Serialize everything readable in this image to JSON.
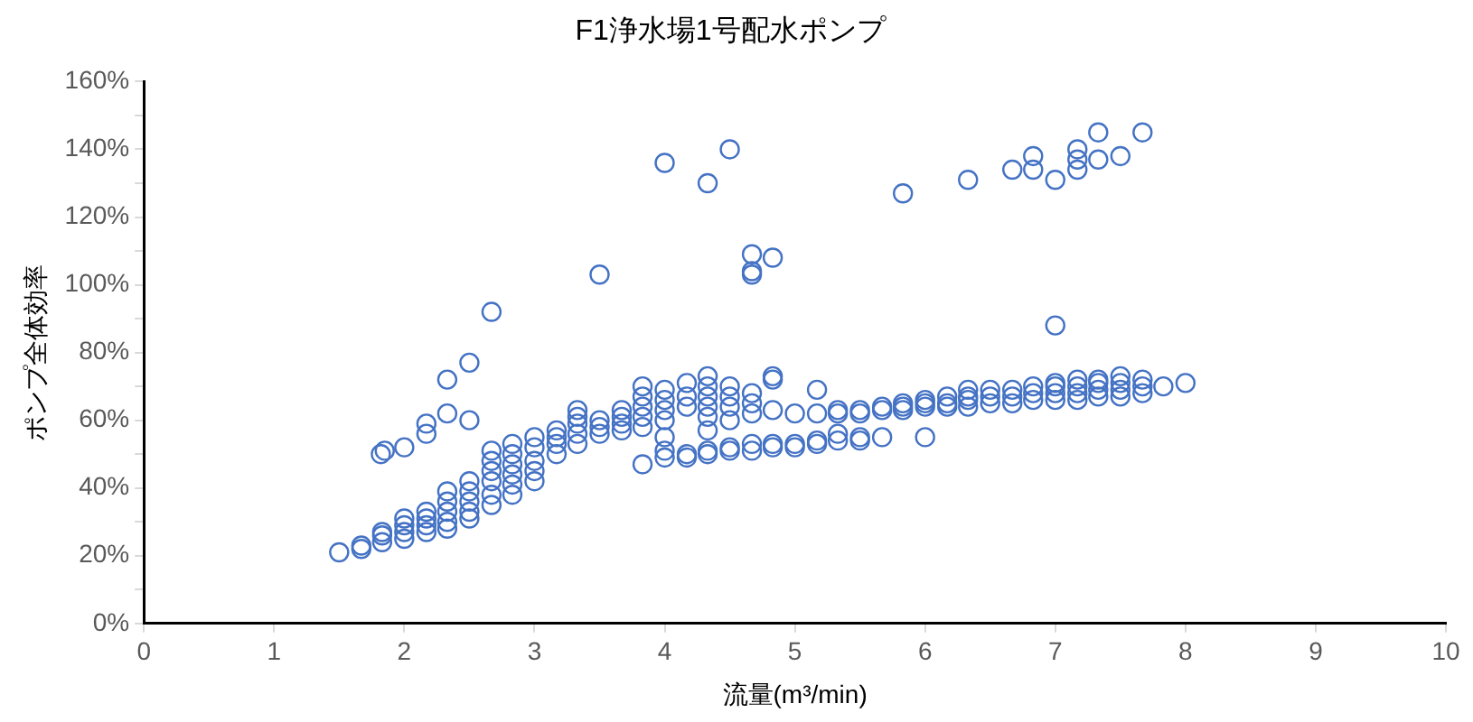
{
  "chart_data": {
    "type": "scatter",
    "title": "F1浄水場1号配水ポンプ",
    "xlabel": "流量(m³/min)",
    "ylabel": "ポンプ全体効率",
    "x": [
      1.5,
      1.67,
      1.67,
      1.83,
      1.83,
      1.83,
      2.0,
      2.0,
      2.0,
      2.0,
      2.17,
      2.17,
      2.17,
      2.17,
      2.33,
      2.33,
      2.33,
      2.33,
      2.33,
      2.5,
      2.5,
      2.5,
      2.5,
      2.5,
      2.67,
      2.67,
      2.67,
      2.67,
      2.67,
      2.67,
      2.83,
      2.83,
      2.83,
      2.83,
      2.83,
      2.83,
      3.0,
      3.0,
      3.0,
      3.0,
      3.0,
      3.17,
      3.17,
      3.17,
      3.17,
      3.33,
      3.33,
      3.33,
      3.33,
      3.33,
      3.5,
      3.5,
      3.5,
      3.67,
      3.67,
      3.67,
      3.67,
      3.83,
      3.83,
      3.83,
      3.83,
      3.83,
      4.0,
      4.0,
      4.0,
      4.0,
      4.0,
      4.0,
      4.0,
      4.17,
      4.17,
      4.17,
      4.17,
      4.17,
      4.33,
      4.33,
      4.33,
      4.33,
      4.33,
      4.33,
      4.33,
      4.33,
      4.5,
      4.5,
      4.5,
      4.5,
      4.5,
      4.5,
      4.67,
      4.67,
      4.67,
      4.67,
      4.67,
      4.83,
      4.83,
      4.83,
      4.83,
      4.83,
      5.0,
      5.0,
      5.0,
      5.17,
      5.17,
      5.17,
      5.33,
      5.33,
      5.33,
      5.33,
      5.5,
      5.5,
      5.5,
      5.5,
      5.67,
      5.67,
      5.67,
      5.83,
      5.83,
      5.83,
      6.0,
      6.0,
      6.0,
      6.17,
      6.17,
      6.17,
      6.33,
      6.33,
      6.33,
      6.33,
      6.5,
      6.5,
      6.5,
      6.67,
      6.67,
      6.67,
      6.83,
      6.83,
      6.83,
      7.0,
      7.0,
      7.0,
      7.0,
      7.17,
      7.17,
      7.17,
      7.17,
      7.33,
      7.33,
      7.33,
      7.33,
      7.5,
      7.5,
      7.5,
      7.5,
      7.67,
      7.67,
      7.67,
      7.83,
      8.0,
      1.82,
      1.85,
      2.0,
      2.17,
      2.17,
      2.33,
      2.33,
      2.5,
      2.5,
      2.67,
      3.5,
      4.0,
      4.33,
      4.5,
      4.67,
      4.67,
      4.67,
      4.83,
      5.83,
      6.33,
      6.67,
      6.83,
      6.83,
      7.0,
      7.17,
      7.17,
      7.17,
      7.33,
      7.33,
      7.5,
      7.67,
      7.0,
      6.0,
      5.17,
      3.83
    ],
    "values": [
      21,
      22,
      23,
      24,
      26,
      27,
      25,
      27,
      29,
      31,
      27,
      29,
      31,
      33,
      28,
      30,
      33,
      36,
      39,
      31,
      33,
      36,
      39,
      42,
      35,
      38,
      42,
      45,
      48,
      51,
      38,
      41,
      44,
      47,
      50,
      53,
      42,
      45,
      48,
      52,
      55,
      50,
      53,
      55,
      57,
      53,
      56,
      59,
      61,
      63,
      56,
      58,
      60,
      57,
      59,
      61,
      63,
      58,
      61,
      64,
      67,
      70,
      49,
      51,
      55,
      60,
      63,
      66,
      69,
      49,
      50,
      64,
      67,
      71,
      50,
      51,
      57,
      61,
      64,
      67,
      70,
      73,
      51,
      52,
      60,
      64,
      67,
      70,
      51,
      53,
      62,
      65,
      68,
      52,
      53,
      63,
      72,
      73,
      52,
      53,
      62,
      53,
      54,
      62,
      54,
      56,
      62,
      63,
      54,
      55,
      62,
      63,
      55,
      63,
      64,
      63,
      64,
      65,
      64,
      65,
      66,
      64,
      65,
      67,
      64,
      66,
      67,
      69,
      65,
      67,
      69,
      65,
      67,
      69,
      66,
      68,
      70,
      66,
      68,
      70,
      71,
      66,
      68,
      70,
      72,
      67,
      69,
      71,
      72,
      67,
      69,
      71,
      73,
      68,
      70,
      72,
      70,
      71,
      50,
      51,
      52,
      56,
      59,
      62,
      72,
      60,
      77,
      92,
      103,
      136,
      130,
      140,
      109,
      104,
      103,
      108,
      127,
      131,
      134,
      138,
      134,
      131,
      140,
      137,
      134,
      145,
      137,
      138,
      145,
      88,
      55,
      69,
      47
    ],
    "color": "#4472c4",
    "marker": "circle",
    "grid": false,
    "legend": false,
    "xlim": [
      0,
      10
    ],
    "xticks": [
      0,
      1,
      2,
      3,
      4,
      5,
      6,
      7,
      8,
      9,
      10
    ],
    "ylim": [
      0,
      160
    ],
    "yticks": [
      {
        "value": 0,
        "label": "0%"
      },
      {
        "value": 10,
        "label": null
      },
      {
        "value": 20,
        "label": "20%"
      },
      {
        "value": 30,
        "label": null
      },
      {
        "value": 40,
        "label": "40%"
      },
      {
        "value": 50,
        "label": null
      },
      {
        "value": 60,
        "label": "60%"
      },
      {
        "value": 70,
        "label": null
      },
      {
        "value": 80,
        "label": "80%"
      },
      {
        "value": 90,
        "label": null
      },
      {
        "value": 100,
        "label": "100%"
      },
      {
        "value": 110,
        "label": null
      },
      {
        "value": 120,
        "label": "120%"
      },
      {
        "value": 130,
        "label": null
      },
      {
        "value": 140,
        "label": "140%"
      },
      {
        "value": 150,
        "label": null
      },
      {
        "value": 160,
        "label": "160%"
      }
    ]
  }
}
